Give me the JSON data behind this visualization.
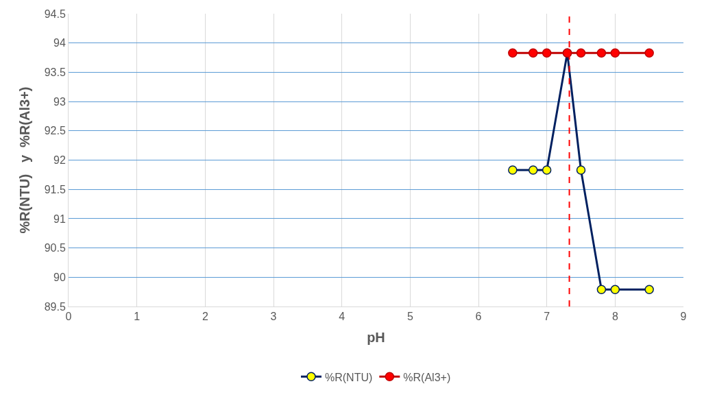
{
  "chart_data": {
    "type": "line",
    "xlabel": "pH",
    "ylabel": "%R(NTU)   y  %R(Al3+)",
    "x": [
      6.5,
      6.8,
      7.0,
      7.3,
      7.5,
      7.8,
      8.0,
      8.5
    ],
    "series": [
      {
        "name": "%R(NTU)",
        "color": "#002060",
        "values": [
          91.83,
          91.83,
          91.83,
          93.83,
          91.83,
          89.79,
          89.79,
          89.79
        ]
      },
      {
        "name": "%R(Al3+)",
        "color": "#c00000",
        "values": [
          93.83,
          93.83,
          93.83,
          93.83,
          93.83,
          93.83,
          93.83,
          93.83
        ]
      }
    ],
    "xlim": [
      0,
      9
    ],
    "xticks": [
      0,
      1,
      2,
      3,
      4,
      5,
      6,
      7,
      8,
      9
    ],
    "ylim": [
      89.5,
      94.5
    ],
    "yticks": [
      89.5,
      90,
      90.5,
      91,
      91.5,
      92,
      92.5,
      93,
      93.5,
      94,
      94.5
    ],
    "ref_lines": [
      {
        "axis": "x",
        "value": 7.33,
        "color": "#ff0000",
        "line_style": "dashed"
      }
    ],
    "grid": true,
    "legend": "bottom",
    "marker": "circle",
    "line_style": "solid"
  }
}
